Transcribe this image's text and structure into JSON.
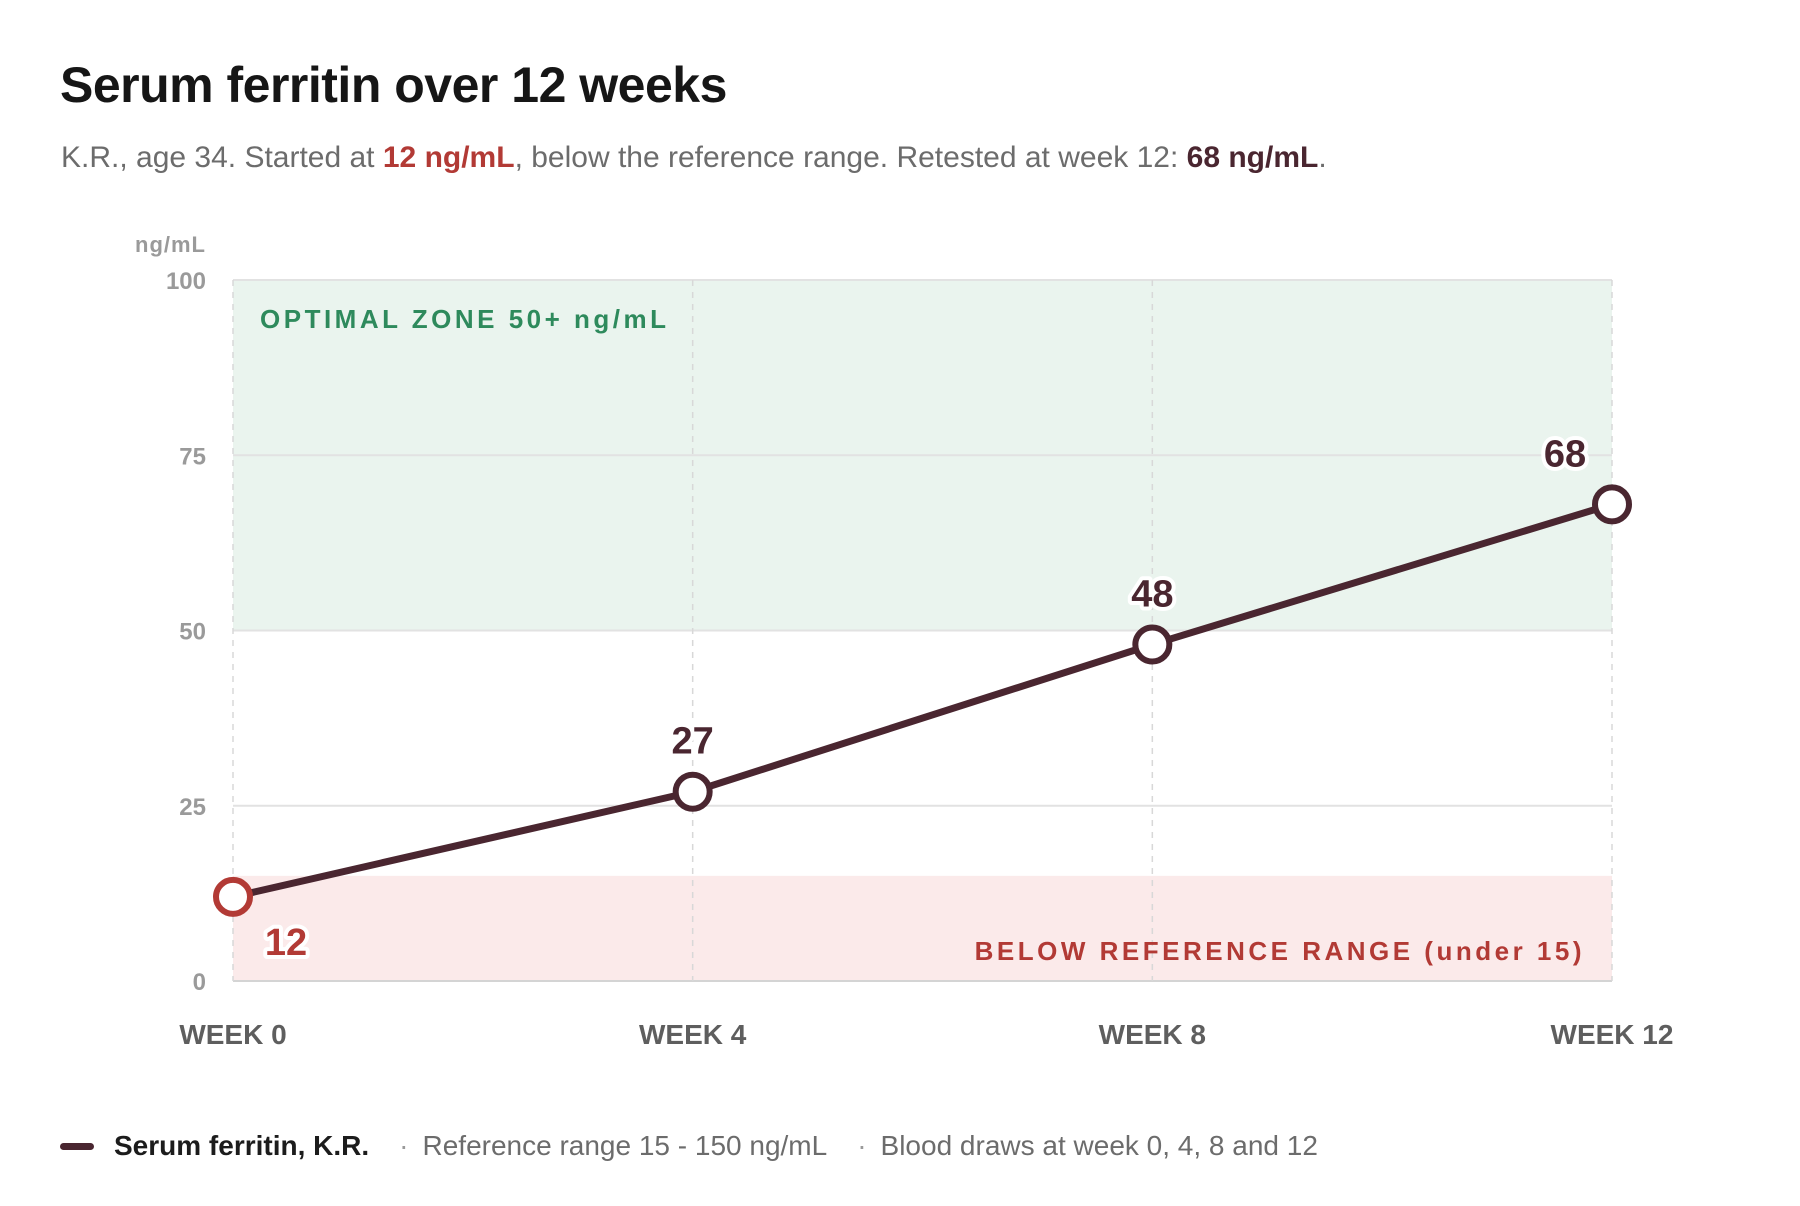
{
  "title": "Serum ferritin over 12 weeks",
  "subtitle": {
    "part1": "K.R., age 34. Started at ",
    "start_value": "12 ng/mL",
    "part2": ", below the reference range. Retested at week 12: ",
    "end_value": "68 ng/mL",
    "part3": "."
  },
  "colors": {
    "line": "#4a2630",
    "low": "#b23a35",
    "optimal_zone_fill": "#eaf4ee",
    "optimal_zone_text": "#2e8a5c",
    "low_zone_fill": "#fbeaea"
  },
  "chart_data": {
    "type": "line",
    "ylabel": "ng/mL",
    "ylim": [
      0,
      100
    ],
    "y_ticks": [
      "0",
      "25",
      "50",
      "75",
      "100"
    ],
    "categories": [
      "WEEK 0",
      "WEEK 4",
      "WEEK 8",
      "WEEK 12"
    ],
    "x": [
      0,
      4,
      8,
      12
    ],
    "series": [
      {
        "name": "Serum ferritin, K.R.",
        "values": [
          12,
          27,
          48,
          68
        ]
      }
    ],
    "data_labels": [
      "12",
      "27",
      "48",
      "68"
    ],
    "bands": [
      {
        "label": "OPTIMAL ZONE 50+ ng/mL",
        "from": 50,
        "to": 100,
        "color": "#eaf4ee",
        "text_color": "#2e8a5c"
      },
      {
        "label": "BELOW REFERENCE RANGE (under 15)",
        "from": 0,
        "to": 15,
        "color": "#fbeaea",
        "text_color": "#b23a35"
      }
    ],
    "grid": true
  },
  "legend": {
    "series_label": "Serum ferritin, K.R.",
    "separator": "·",
    "reference_note": "Reference range 15 - 150 ng/mL",
    "draws_note": "Blood draws at week 0, 4, 8 and 12"
  }
}
